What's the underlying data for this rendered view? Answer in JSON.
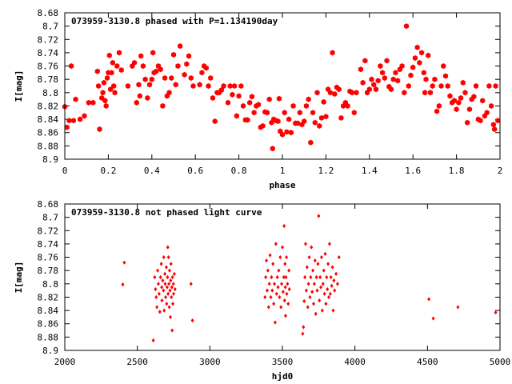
{
  "chart_data": [
    {
      "type": "scatter",
      "title": "073959-3130.8 phased with P=1.134190day",
      "xlabel": "phase",
      "ylabel": "I[mag]",
      "xlim": [
        0,
        2
      ],
      "ylim": [
        8.9,
        8.68
      ],
      "y_inverted": true,
      "grid": false,
      "marker_color": "#ff0000",
      "marker": "filled-hexagon",
      "x_ticks": [
        0,
        0.2,
        0.4,
        0.6,
        0.8,
        1,
        1.2,
        1.4,
        1.6,
        1.8,
        2
      ],
      "x_tick_labels": [
        "0",
        "0.2",
        "0.4",
        "0.6",
        "0.8",
        "1",
        "1.2",
        "1.4",
        "1.6",
        "1.8",
        "2"
      ],
      "y_ticks": [
        8.68,
        8.7,
        8.72,
        8.74,
        8.76,
        8.78,
        8.8,
        8.82,
        8.84,
        8.86,
        8.88,
        8.9
      ],
      "y_tick_labels": [
        "8.68",
        "8.7",
        "8.72",
        "8.74",
        "8.76",
        "8.78",
        "8.8",
        "8.82",
        "8.84",
        "8.86",
        "8.88",
        "8.9"
      ],
      "points": [
        [
          0.0,
          8.821
        ],
        [
          0.01,
          8.852
        ],
        [
          0.02,
          8.842
        ],
        [
          0.03,
          8.76
        ],
        [
          0.04,
          8.842
        ],
        [
          0.05,
          8.81
        ],
        [
          0.07,
          8.84
        ],
        [
          0.09,
          8.835
        ],
        [
          0.11,
          8.815
        ],
        [
          0.13,
          8.815
        ],
        [
          0.15,
          8.768
        ],
        [
          0.155,
          8.79
        ],
        [
          0.16,
          8.855
        ],
        [
          0.17,
          8.808
        ],
        [
          0.175,
          8.8
        ],
        [
          0.18,
          8.785
        ],
        [
          0.185,
          8.812
        ],
        [
          0.19,
          8.82
        ],
        [
          0.195,
          8.778
        ],
        [
          0.2,
          8.77
        ],
        [
          0.205,
          8.744
        ],
        [
          0.21,
          8.795
        ],
        [
          0.215,
          8.77
        ],
        [
          0.22,
          8.755
        ],
        [
          0.225,
          8.79
        ],
        [
          0.23,
          8.8
        ],
        [
          0.24,
          8.76
        ],
        [
          0.25,
          8.74
        ],
        [
          0.26,
          8.766
        ],
        [
          0.29,
          8.79
        ],
        [
          0.31,
          8.76
        ],
        [
          0.32,
          8.755
        ],
        [
          0.33,
          8.815
        ],
        [
          0.34,
          8.788
        ],
        [
          0.345,
          8.805
        ],
        [
          0.35,
          8.745
        ],
        [
          0.36,
          8.76
        ],
        [
          0.37,
          8.78
        ],
        [
          0.38,
          8.808
        ],
        [
          0.39,
          8.788
        ],
        [
          0.4,
          8.78
        ],
        [
          0.405,
          8.74
        ],
        [
          0.41,
          8.77
        ],
        [
          0.42,
          8.768
        ],
        [
          0.43,
          8.76
        ],
        [
          0.44,
          8.765
        ],
        [
          0.45,
          8.82
        ],
        [
          0.46,
          8.778
        ],
        [
          0.47,
          8.805
        ],
        [
          0.48,
          8.8
        ],
        [
          0.49,
          8.778
        ],
        [
          0.5,
          8.743
        ],
        [
          0.51,
          8.788
        ],
        [
          0.52,
          8.76
        ],
        [
          0.53,
          8.73
        ],
        [
          0.55,
          8.773
        ],
        [
          0.56,
          8.757
        ],
        [
          0.57,
          8.745
        ],
        [
          0.58,
          8.778
        ],
        [
          0.59,
          8.79
        ],
        [
          0.62,
          8.788
        ],
        [
          0.63,
          8.77
        ],
        [
          0.64,
          8.76
        ],
        [
          0.65,
          8.763
        ],
        [
          0.66,
          8.79
        ],
        [
          0.67,
          8.778
        ],
        [
          0.68,
          8.808
        ],
        [
          0.69,
          8.843
        ],
        [
          0.7,
          8.8
        ],
        [
          0.71,
          8.8
        ],
        [
          0.72,
          8.796
        ],
        [
          0.73,
          8.79
        ],
        [
          0.75,
          8.815
        ],
        [
          0.76,
          8.79
        ],
        [
          0.77,
          8.803
        ],
        [
          0.78,
          8.79
        ],
        [
          0.79,
          8.835
        ],
        [
          0.8,
          8.805
        ],
        [
          0.81,
          8.79
        ],
        [
          0.82,
          8.82
        ],
        [
          0.83,
          8.841
        ],
        [
          0.84,
          8.841
        ],
        [
          0.85,
          8.815
        ],
        [
          0.86,
          8.806
        ],
        [
          0.87,
          8.83
        ],
        [
          0.88,
          8.82
        ],
        [
          0.89,
          8.818
        ],
        [
          0.9,
          8.852
        ],
        [
          0.91,
          8.85
        ],
        [
          0.92,
          8.829
        ],
        [
          0.93,
          8.83
        ],
        [
          0.94,
          8.81
        ],
        [
          0.95,
          8.845
        ],
        [
          0.955,
          8.884
        ],
        [
          0.96,
          8.84
        ],
        [
          0.97,
          8.842
        ],
        [
          0.98,
          8.843
        ],
        [
          0.985,
          8.809
        ],
        [
          0.99,
          8.858
        ],
        [
          1.0,
          8.863
        ],
        [
          1.01,
          8.83
        ],
        [
          1.02,
          8.859
        ],
        [
          1.03,
          8.84
        ],
        [
          1.04,
          8.86
        ],
        [
          1.05,
          8.82
        ],
        [
          1.06,
          8.846
        ],
        [
          1.07,
          8.846
        ],
        [
          1.08,
          8.83
        ],
        [
          1.09,
          8.848
        ],
        [
          1.1,
          8.843
        ],
        [
          1.11,
          8.82
        ],
        [
          1.12,
          8.81
        ],
        [
          1.13,
          8.875
        ],
        [
          1.14,
          8.83
        ],
        [
          1.15,
          8.845
        ],
        [
          1.16,
          8.8
        ],
        [
          1.17,
          8.85
        ],
        [
          1.18,
          8.838
        ],
        [
          1.19,
          8.814
        ],
        [
          1.2,
          8.836
        ],
        [
          1.21,
          8.795
        ],
        [
          1.22,
          8.8
        ],
        [
          1.23,
          8.74
        ],
        [
          1.24,
          8.802
        ],
        [
          1.25,
          8.792
        ],
        [
          1.26,
          8.795
        ],
        [
          1.27,
          8.838
        ],
        [
          1.28,
          8.82
        ],
        [
          1.29,
          8.815
        ],
        [
          1.3,
          8.82
        ],
        [
          1.31,
          8.798
        ],
        [
          1.32,
          8.8
        ],
        [
          1.33,
          8.83
        ],
        [
          1.34,
          8.8
        ],
        [
          1.36,
          8.765
        ],
        [
          1.37,
          8.785
        ],
        [
          1.38,
          8.752
        ],
        [
          1.39,
          8.8
        ],
        [
          1.4,
          8.795
        ],
        [
          1.41,
          8.78
        ],
        [
          1.42,
          8.788
        ],
        [
          1.43,
          8.795
        ],
        [
          1.44,
          8.782
        ],
        [
          1.45,
          8.76
        ],
        [
          1.46,
          8.77
        ],
        [
          1.47,
          8.778
        ],
        [
          1.48,
          8.752
        ],
        [
          1.49,
          8.791
        ],
        [
          1.5,
          8.795
        ],
        [
          1.51,
          8.78
        ],
        [
          1.52,
          8.77
        ],
        [
          1.53,
          8.782
        ],
        [
          1.54,
          8.765
        ],
        [
          1.55,
          8.76
        ],
        [
          1.56,
          8.8
        ],
        [
          1.57,
          8.7
        ],
        [
          1.58,
          8.79
        ],
        [
          1.59,
          8.774
        ],
        [
          1.6,
          8.762
        ],
        [
          1.61,
          8.748
        ],
        [
          1.62,
          8.732
        ],
        [
          1.63,
          8.755
        ],
        [
          1.64,
          8.74
        ],
        [
          1.65,
          8.77
        ],
        [
          1.655,
          8.8
        ],
        [
          1.66,
          8.78
        ],
        [
          1.67,
          8.744
        ],
        [
          1.68,
          8.8
        ],
        [
          1.69,
          8.79
        ],
        [
          1.7,
          8.78
        ],
        [
          1.71,
          8.828
        ],
        [
          1.72,
          8.82
        ],
        [
          1.73,
          8.79
        ],
        [
          1.74,
          8.76
        ],
        [
          1.75,
          8.775
        ],
        [
          1.76,
          8.79
        ],
        [
          1.77,
          8.805
        ],
        [
          1.78,
          8.815
        ],
        [
          1.79,
          8.812
        ],
        [
          1.8,
          8.825
        ],
        [
          1.81,
          8.815
        ],
        [
          1.82,
          8.808
        ],
        [
          1.83,
          8.785
        ],
        [
          1.84,
          8.8
        ],
        [
          1.85,
          8.845
        ],
        [
          1.86,
          8.825
        ],
        [
          1.87,
          8.81
        ],
        [
          1.88,
          8.806
        ],
        [
          1.89,
          8.79
        ],
        [
          1.9,
          8.84
        ],
        [
          1.91,
          8.842
        ],
        [
          1.92,
          8.812
        ],
        [
          1.93,
          8.835
        ],
        [
          1.94,
          8.83
        ],
        [
          1.95,
          8.79
        ],
        [
          1.96,
          8.82
        ],
        [
          1.97,
          8.848
        ],
        [
          1.975,
          8.855
        ],
        [
          1.98,
          8.79
        ],
        [
          1.99,
          8.842
        ]
      ]
    },
    {
      "type": "scatter",
      "title": "073959-3130.8 not phased light curve",
      "xlabel": "hjd0",
      "ylabel": "I[mag]",
      "xlim": [
        2000,
        5000
      ],
      "ylim": [
        8.9,
        8.68
      ],
      "y_inverted": true,
      "grid": false,
      "marker_color": "#ff0000",
      "marker": "small-diamond",
      "x_ticks": [
        2000,
        2500,
        3000,
        3500,
        4000,
        4500,
        5000
      ],
      "x_tick_labels": [
        "2000",
        "2500",
        "3000",
        "3500",
        "4000",
        "4500",
        "5000"
      ],
      "y_ticks": [
        8.68,
        8.7,
        8.72,
        8.74,
        8.76,
        8.78,
        8.8,
        8.82,
        8.84,
        8.86,
        8.88,
        8.9
      ],
      "y_tick_labels": [
        "8.68",
        "8.7",
        "8.72",
        "8.74",
        "8.76",
        "8.78",
        "8.8",
        "8.82",
        "8.84",
        "8.86",
        "8.88",
        "8.9"
      ],
      "points": [
        [
          2400,
          8.801
        ],
        [
          2410,
          8.768
        ],
        [
          2610,
          8.885
        ],
        [
          2620,
          8.79
        ],
        [
          2625,
          8.808
        ],
        [
          2630,
          8.82
        ],
        [
          2635,
          8.835
        ],
        [
          2640,
          8.78
        ],
        [
          2645,
          8.8
        ],
        [
          2650,
          8.815
        ],
        [
          2655,
          8.842
        ],
        [
          2660,
          8.79
        ],
        [
          2665,
          8.77
        ],
        [
          2668,
          8.805
        ],
        [
          2670,
          8.825
        ],
        [
          2675,
          8.795
        ],
        [
          2680,
          8.81
        ],
        [
          2682,
          8.76
        ],
        [
          2685,
          8.84
        ],
        [
          2690,
          8.785
        ],
        [
          2692,
          8.8
        ],
        [
          2695,
          8.82
        ],
        [
          2700,
          8.775
        ],
        [
          2702,
          8.83
        ],
        [
          2705,
          8.805
        ],
        [
          2708,
          8.79
        ],
        [
          2710,
          8.745
        ],
        [
          2712,
          8.815
        ],
        [
          2715,
          8.76
        ],
        [
          2718,
          8.8
        ],
        [
          2720,
          8.835
        ],
        [
          2722,
          8.78
        ],
        [
          2725,
          8.81
        ],
        [
          2728,
          8.85
        ],
        [
          2730,
          8.795
        ],
        [
          2732,
          8.77
        ],
        [
          2735,
          8.82
        ],
        [
          2738,
          8.805
        ],
        [
          2740,
          8.87
        ],
        [
          2742,
          8.79
        ],
        [
          2745,
          8.83
        ],
        [
          2748,
          8.8
        ],
        [
          2750,
          8.815
        ],
        [
          2755,
          8.785
        ],
        [
          2760,
          8.808
        ],
        [
          2870,
          8.8
        ],
        [
          2880,
          8.855
        ],
        [
          3380,
          8.82
        ],
        [
          3385,
          8.79
        ],
        [
          3390,
          8.765
        ],
        [
          3395,
          8.81
        ],
        [
          3400,
          8.78
        ],
        [
          3405,
          8.835
        ],
        [
          3410,
          8.8
        ],
        [
          3415,
          8.757
        ],
        [
          3420,
          8.82
        ],
        [
          3425,
          8.79
        ],
        [
          3430,
          8.81
        ],
        [
          3435,
          8.77
        ],
        [
          3440,
          8.83
        ],
        [
          3445,
          8.8
        ],
        [
          3450,
          8.858
        ],
        [
          3455,
          8.74
        ],
        [
          3460,
          8.815
        ],
        [
          3465,
          8.79
        ],
        [
          3470,
          8.805
        ],
        [
          3475,
          8.78
        ],
        [
          3480,
          8.82
        ],
        [
          3485,
          8.76
        ],
        [
          3490,
          8.835
        ],
        [
          3495,
          8.8
        ],
        [
          3500,
          8.745
        ],
        [
          3505,
          8.812
        ],
        [
          3510,
          8.79
        ],
        [
          3512,
          8.713
        ],
        [
          3515,
          8.825
        ],
        [
          3518,
          8.77
        ],
        [
          3520,
          8.805
        ],
        [
          3522,
          8.848
        ],
        [
          3525,
          8.79
        ],
        [
          3528,
          8.76
        ],
        [
          3530,
          8.815
        ],
        [
          3535,
          8.8
        ],
        [
          3540,
          8.83
        ],
        [
          3545,
          8.78
        ],
        [
          3548,
          8.808
        ],
        [
          3640,
          8.875
        ],
        [
          3645,
          8.865
        ],
        [
          3650,
          8.826
        ],
        [
          3655,
          8.79
        ],
        [
          3660,
          8.74
        ],
        [
          3665,
          8.81
        ],
        [
          3670,
          8.775
        ],
        [
          3675,
          8.835
        ],
        [
          3680,
          8.8
        ],
        [
          3685,
          8.76
        ],
        [
          3690,
          8.82
        ],
        [
          3695,
          8.79
        ],
        [
          3700,
          8.745
        ],
        [
          3705,
          8.812
        ],
        [
          3710,
          8.78
        ],
        [
          3715,
          8.83
        ],
        [
          3720,
          8.8
        ],
        [
          3725,
          8.765
        ],
        [
          3730,
          8.845
        ],
        [
          3735,
          8.79
        ],
        [
          3740,
          8.81
        ],
        [
          3745,
          8.77
        ],
        [
          3750,
          8.698
        ],
        [
          3755,
          8.825
        ],
        [
          3760,
          8.79
        ],
        [
          3765,
          8.805
        ],
        [
          3770,
          8.76
        ],
        [
          3775,
          8.84
        ],
        [
          3780,
          8.8
        ],
        [
          3785,
          8.78
        ],
        [
          3790,
          8.815
        ],
        [
          3795,
          8.755
        ],
        [
          3800,
          8.83
        ],
        [
          3805,
          8.79
        ],
        [
          3810,
          8.808
        ],
        [
          3815,
          8.77
        ],
        [
          3820,
          8.82
        ],
        [
          3825,
          8.74
        ],
        [
          3830,
          8.815
        ],
        [
          3835,
          8.79
        ],
        [
          3840,
          8.803
        ],
        [
          3845,
          8.775
        ],
        [
          3850,
          8.84
        ],
        [
          3855,
          8.795
        ],
        [
          3860,
          8.81
        ],
        [
          3870,
          8.785
        ],
        [
          3880,
          8.8
        ],
        [
          3890,
          8.76
        ],
        [
          4510,
          8.823
        ],
        [
          4540,
          8.852
        ],
        [
          4710,
          8.835
        ],
        [
          4970,
          8.843
        ]
      ]
    }
  ]
}
